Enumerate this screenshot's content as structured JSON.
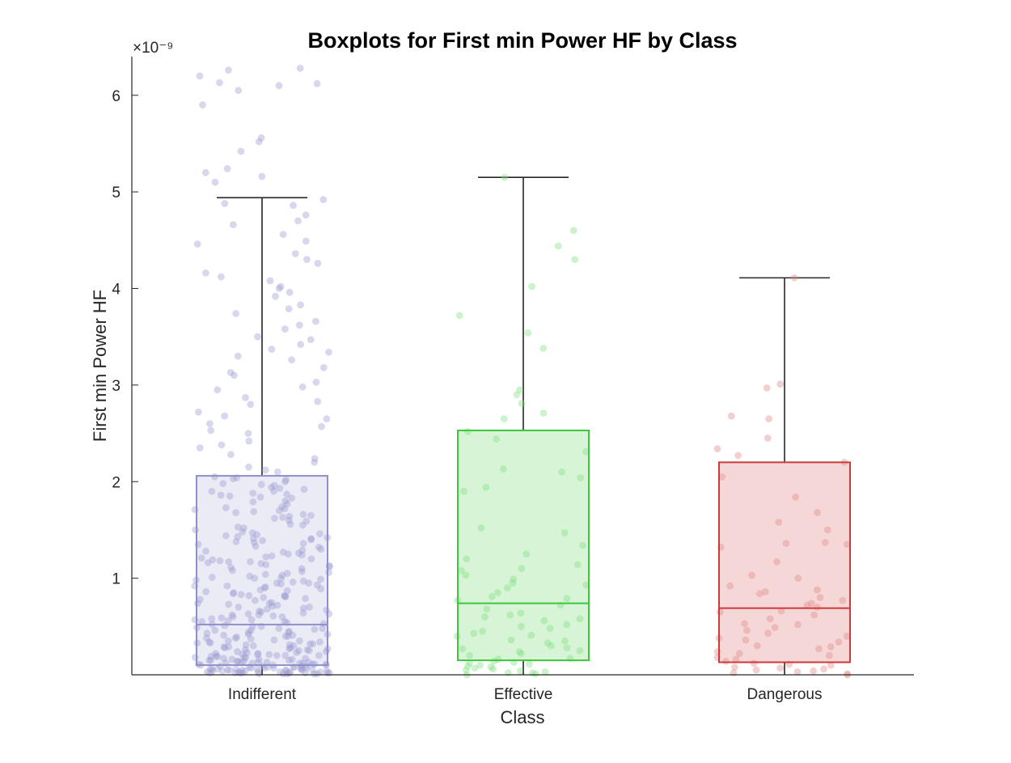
{
  "chart_data": {
    "type": "boxplot",
    "title": "Boxplots for First min Power HF by Class",
    "xlabel": "Class",
    "ylabel": "First min Power HF",
    "y_exponent": "×10⁻⁹",
    "ylim": [
      0,
      6.4
    ],
    "yticks": [
      1,
      2,
      3,
      4,
      5,
      6
    ],
    "ytick_labels": [
      "1",
      "2",
      "3",
      "4",
      "5",
      "6"
    ],
    "grid": false,
    "categories": [
      "Indifferent",
      "Effective",
      "Dangerous"
    ],
    "boxes": [
      {
        "name": "Indifferent",
        "color": "#9a9ad2",
        "edge_color": "#8f8fca",
        "fill_color": "#ebebf6",
        "min": 0,
        "q1": 0.1,
        "median": 0.52,
        "q3": 2.06,
        "whisker_high": 4.94,
        "points": [
          0.01,
          0.02,
          0.03,
          0.02,
          0.04,
          0.05,
          0.06,
          0.01,
          0.03,
          0.07,
          0.08,
          0.02,
          0.05,
          0.09,
          0.1,
          0.12,
          0.04,
          0.06,
          0.11,
          0.13,
          0.15,
          0.03,
          0.08,
          0.14,
          0.16,
          0.18,
          0.2,
          0.05,
          0.07,
          0.12,
          0.17,
          0.19,
          0.22,
          0.24,
          0.26,
          0.09,
          0.11,
          0.21,
          0.23,
          0.28,
          0.3,
          0.32,
          0.02,
          0.06,
          0.13,
          0.25,
          0.27,
          0.34,
          0.36,
          0.38,
          0.4,
          0.42,
          0.15,
          0.29,
          0.31,
          0.44,
          0.46,
          0.48,
          0.5,
          0.33,
          0.35,
          0.52,
          0.55,
          0.57,
          0.6,
          0.62,
          0.37,
          0.41,
          0.64,
          0.66,
          0.68,
          0.7,
          0.72,
          0.45,
          0.49,
          0.74,
          0.77,
          0.8,
          0.82,
          0.85,
          0.88,
          0.53,
          0.59,
          0.9,
          0.93,
          0.95,
          0.98,
          1.0,
          1.03,
          0.63,
          0.69,
          1.05,
          1.08,
          1.1,
          1.13,
          1.15,
          1.18,
          0.75,
          0.81,
          1.2,
          1.23,
          1.25,
          1.28,
          1.3,
          0.86,
          0.92,
          1.33,
          1.36,
          1.38,
          1.41,
          1.44,
          0.97,
          1.02,
          1.47,
          1.5,
          1.53,
          1.56,
          1.59,
          1.07,
          1.12,
          1.62,
          1.65,
          1.68,
          1.71,
          1.17,
          1.22,
          1.74,
          1.77,
          1.8,
          1.84,
          1.27,
          1.32,
          1.87,
          1.9,
          1.94,
          1.98,
          2.02,
          1.37,
          1.43,
          0.01,
          0.02,
          0.04,
          0.05,
          0.03,
          0.06,
          0.08,
          0.1,
          0.02,
          0.07,
          0.09,
          0.12,
          0.14,
          0.16,
          0.01,
          0.04,
          0.11,
          0.13,
          0.18,
          0.2,
          0.23,
          0.03,
          0.06,
          0.15,
          0.19,
          0.25,
          0.28,
          0.31,
          0.05,
          0.17,
          0.22,
          0.34,
          0.39,
          0.43,
          0.47,
          0.21,
          0.27,
          0.51,
          0.56,
          0.61,
          0.67,
          0.73,
          0.3,
          0.38,
          0.79,
          0.84,
          0.91,
          0.96,
          1.04,
          0.44,
          0.54,
          1.11,
          1.19,
          1.26,
          1.35,
          0.58,
          0.65,
          1.45,
          1.52,
          1.6,
          1.7,
          0.71,
          0.83,
          1.79,
          1.88,
          1.96,
          2.04,
          0.89,
          0.99,
          2.1,
          2.15,
          2.2,
          2.28,
          2.35,
          2.42,
          2.5,
          2.57,
          2.65,
          2.72,
          2.8,
          2.87,
          2.95,
          3.03,
          3.1,
          3.18,
          3.26,
          3.34,
          3.42,
          3.5,
          3.58,
          3.66,
          3.74,
          3.83,
          3.92,
          4.0,
          4.08,
          4.16,
          4.26,
          4.36,
          4.46,
          4.56,
          4.66,
          4.76,
          4.86,
          4.92,
          2.12,
          2.24,
          2.38,
          2.53,
          2.68,
          2.83,
          2.98,
          3.13,
          3.3,
          3.47,
          3.62,
          3.79,
          3.96,
          4.12,
          4.3,
          4.49,
          4.7,
          4.88,
          5.1,
          5.2,
          5.24,
          5.42,
          5.52,
          5.56,
          5.9,
          6.05,
          6.1,
          6.12,
          6.13,
          6.2,
          6.26,
          6.28,
          5.16,
          4.02,
          3.37,
          2.6,
          1.92,
          1.41,
          0.94,
          0.48,
          0.14,
          0.02,
          0.07,
          0.21,
          0.35,
          0.57,
          0.78,
          1.06,
          1.29,
          1.55,
          1.73,
          1.86,
          2.0,
          0.03,
          0.08,
          0.13,
          0.24,
          0.4,
          0.62,
          0.87,
          1.14,
          1.39,
          1.64,
          1.83,
          2.03,
          0.05,
          0.1,
          0.19,
          0.32,
          0.5,
          0.7,
          0.92,
          1.16,
          1.42,
          1.66,
          1.9,
          0.04,
          0.09,
          0.16,
          0.26,
          0.42,
          0.6,
          0.81,
          1.01,
          1.24,
          1.48,
          1.72,
          1.97,
          0.01,
          0.06,
          0.11,
          0.2,
          0.33,
          0.46,
          0.63,
          0.82,
          1.0,
          1.21,
          1.46,
          1.69,
          1.93,
          0.02,
          0.07,
          0.12,
          0.18,
          0.29,
          0.41,
          0.55,
          0.74,
          0.95,
          1.17,
          1.4,
          1.63,
          1.85,
          2.05
        ],
        "x_jitter": []
      },
      {
        "name": "Effective",
        "color": "#7fe07f",
        "edge_color": "#3ec63e",
        "fill_color": "#d7f4d7",
        "min": 0,
        "q1": 0.15,
        "median": 0.74,
        "q3": 2.53,
        "whisker_high": 5.15,
        "points": [
          0.0,
          0.01,
          0.02,
          0.03,
          0.05,
          0.06,
          0.08,
          0.09,
          0.1,
          0.12,
          0.14,
          0.17,
          0.2,
          0.22,
          0.25,
          0.27,
          0.3,
          0.33,
          0.36,
          0.4,
          0.43,
          0.45,
          0.48,
          0.52,
          0.56,
          0.6,
          0.64,
          0.68,
          0.72,
          0.77,
          0.81,
          0.85,
          0.9,
          0.95,
          0.99,
          1.03,
          1.08,
          1.14,
          1.2,
          1.25,
          1.34,
          1.47,
          1.52,
          1.9,
          1.94,
          2.04,
          2.1,
          2.13,
          2.31,
          2.44,
          2.52,
          2.65,
          2.71,
          2.81,
          2.9,
          2.95,
          3.38,
          3.54,
          3.72,
          4.02,
          4.3,
          4.44,
          4.6,
          5.15,
          0.04,
          0.07,
          0.11,
          0.16,
          0.24,
          0.35,
          0.5,
          0.62,
          0.79,
          0.93,
          1.1,
          0.02,
          0.13,
          0.28,
          0.41,
          0.58
        ],
        "x_jitter": []
      },
      {
        "name": "Dangerous",
        "color": "#e08a8a",
        "edge_color": "#cc3a3a",
        "fill_color": "#f6d7d7",
        "min": 0,
        "q1": 0.13,
        "median": 0.69,
        "q3": 2.2,
        "whisker_high": 4.11,
        "points": [
          0.0,
          0.01,
          0.02,
          0.03,
          0.04,
          0.05,
          0.07,
          0.08,
          0.1,
          0.12,
          0.14,
          0.16,
          0.2,
          0.22,
          0.24,
          0.27,
          0.3,
          0.34,
          0.36,
          0.4,
          0.43,
          0.46,
          0.49,
          0.53,
          0.58,
          0.62,
          0.66,
          0.7,
          0.72,
          0.74,
          0.77,
          0.8,
          0.84,
          0.88,
          0.92,
          1.0,
          1.03,
          1.17,
          1.32,
          1.35,
          1.36,
          1.37,
          1.5,
          1.58,
          1.68,
          1.84,
          2.05,
          2.2,
          2.27,
          2.34,
          2.45,
          2.65,
          2.68,
          2.97,
          3.01,
          4.11,
          0.06,
          0.11,
          0.18,
          0.29,
          0.38,
          0.52,
          0.65,
          0.86
        ],
        "x_jitter": []
      }
    ]
  }
}
